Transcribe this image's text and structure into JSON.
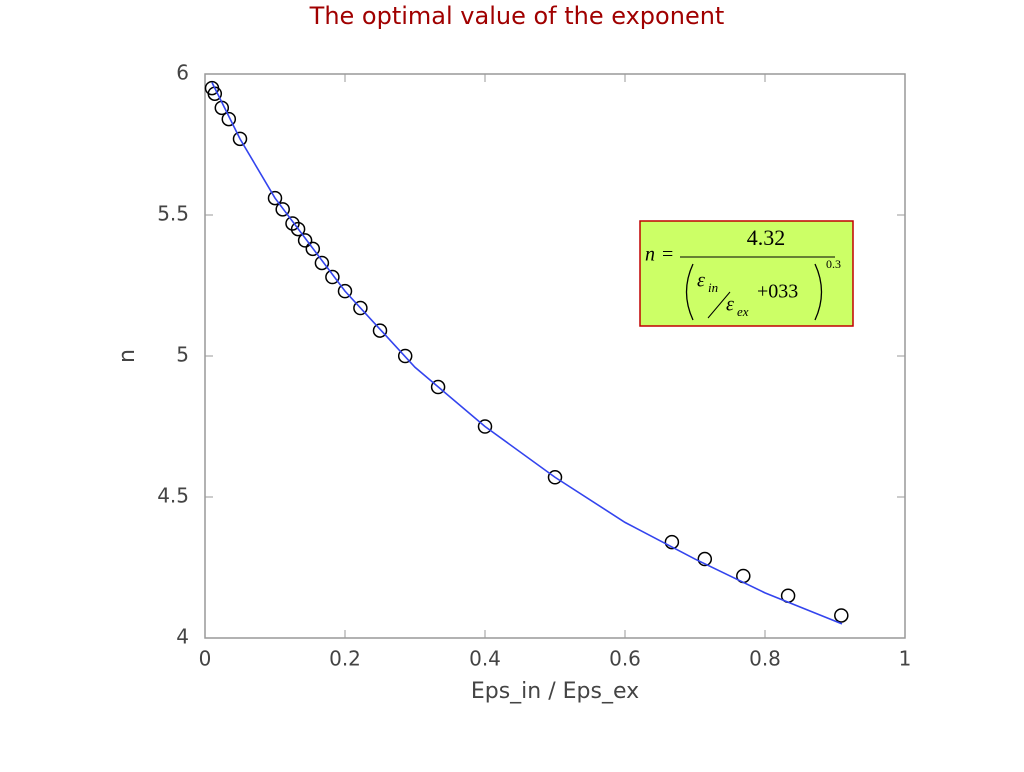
{
  "chart_data": {
    "type": "scatter",
    "title": "The optimal value of the exponent",
    "xlabel": "Eps_in / Eps_ex",
    "ylabel": "n",
    "xlim": [
      0,
      1
    ],
    "ylim": [
      4,
      6
    ],
    "xticks": [
      0,
      0.2,
      0.4,
      0.6,
      0.8,
      1
    ],
    "yticks": [
      4,
      4.5,
      5,
      5.5,
      6
    ],
    "grid": false,
    "series": [
      {
        "type": "scatter",
        "color": "#000000",
        "x": [
          0.01,
          0.014,
          0.024,
          0.034,
          0.05,
          0.1,
          0.111,
          0.125,
          0.133,
          0.143,
          0.154,
          0.167,
          0.182,
          0.2,
          0.222,
          0.25,
          0.286,
          0.333,
          0.4,
          0.5,
          0.667,
          0.714,
          0.769,
          0.833,
          0.909
        ],
        "values": [
          5.95,
          5.93,
          5.88,
          5.84,
          5.77,
          5.56,
          5.52,
          5.47,
          5.45,
          5.41,
          5.38,
          5.33,
          5.28,
          5.23,
          5.17,
          5.09,
          5.0,
          4.89,
          4.75,
          4.57,
          4.34,
          4.28,
          4.22,
          4.15,
          4.08
        ]
      },
      {
        "type": "line",
        "color": "#3344ee",
        "x": [
          0.01,
          0.05,
          0.1,
          0.2,
          0.3,
          0.4,
          0.5,
          0.6,
          0.7,
          0.8,
          0.91
        ],
        "values": [
          5.97,
          5.77,
          5.56,
          5.23,
          4.96,
          4.75,
          4.57,
          4.41,
          4.28,
          4.16,
          4.05
        ]
      }
    ],
    "formula": {
      "lhs": "n",
      "equals": "=",
      "numerator": "4.32",
      "eps1": "ε",
      "sub1": "in",
      "eps2": "ε",
      "sub2": "ex",
      "plus": "+033",
      "exponent": "0.3",
      "fill": "#ccff66",
      "border": "#c00000"
    }
  }
}
